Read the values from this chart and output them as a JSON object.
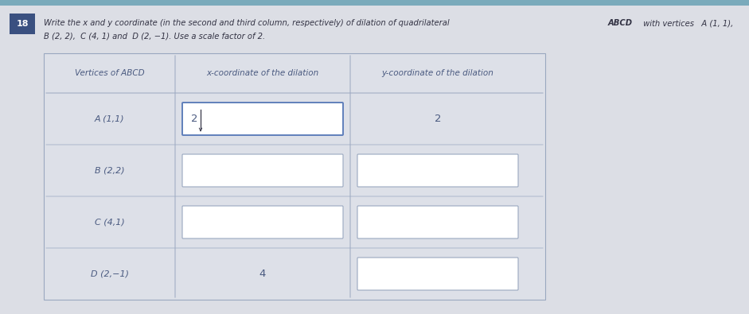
{
  "question_number": "18",
  "col_headers": [
    "Vertices of ABCD",
    "x-coordinate of the dilation",
    "y-coordinate of the dilation"
  ],
  "rows": [
    {
      "vertex": "A (1,1)",
      "x_val": "2",
      "y_val": "2",
      "x_has_box": true,
      "y_has_box": false,
      "x_active": true
    },
    {
      "vertex": "B (2,2)",
      "x_val": "",
      "y_val": "",
      "x_has_box": true,
      "y_has_box": true,
      "x_active": false
    },
    {
      "vertex": "C (4,1)",
      "x_val": "",
      "y_val": "",
      "x_has_box": true,
      "y_has_box": true,
      "x_active": false
    },
    {
      "vertex": "D (2,−1)",
      "x_val": "4",
      "y_val": "",
      "x_has_box": false,
      "y_has_box": true,
      "x_active": false
    }
  ],
  "page_bg": "#d8dae0",
  "content_bg": "#e4e6ec",
  "table_bg": "#dde0e8",
  "input_box_color": "#ffffff",
  "input_box_border": "#9aa8c0",
  "active_box_border": "#6080bb",
  "header_text_color": "#4a5a80",
  "vertex_text_color": "#4a5a80",
  "value_text_color": "#4a5a80",
  "question_num_bg": "#3a5080",
  "question_num_color": "#ffffff",
  "top_bar_color": "#7aaabb",
  "line1_normal": "Write the ",
  "line1_x": "x",
  "line1_mid": " and ",
  "line1_y": "y",
  "line1_rest": " coordinate (in the second and third column, respectively) of dilation of quadrilateral ",
  "line1_bold": "ABCD",
  "line1_end": " with vertices  A (1, 1),",
  "line2": "B (2, 2),  C (4, 1) and  D (2, −1). Use a scale factor of 2."
}
